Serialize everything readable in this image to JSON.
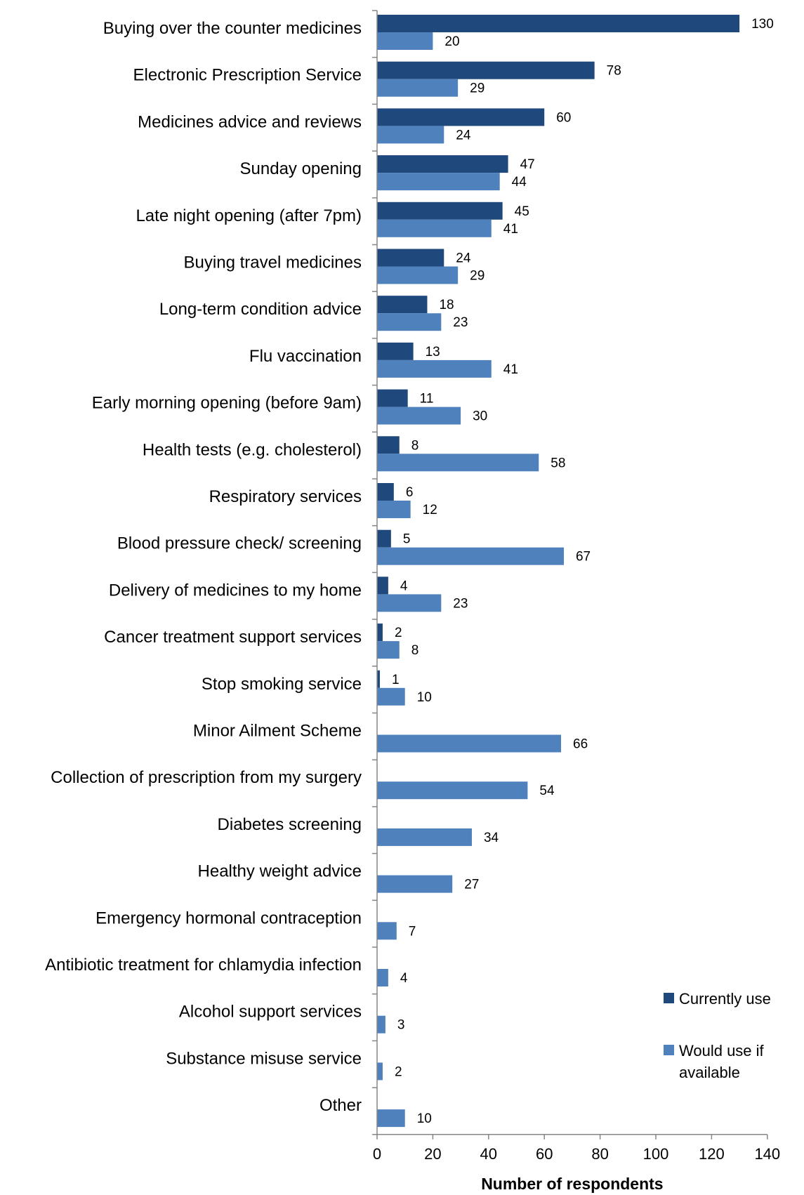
{
  "chart_data": {
    "type": "bar",
    "orientation": "horizontal",
    "xlabel": "Number of respondents",
    "ylabel": "",
    "xlim": [
      0,
      140
    ],
    "xticks": [
      0,
      20,
      40,
      60,
      80,
      100,
      120,
      140
    ],
    "grid": false,
    "legend_position": "bottom-right",
    "categories": [
      "Buying over the counter medicines",
      "Electronic Prescription Service",
      "Medicines advice and reviews",
      "Sunday opening",
      "Late night opening (after 7pm)",
      "Buying travel medicines",
      "Long-term condition advice",
      "Flu vaccination",
      "Early morning opening (before 9am)",
      "Health tests (e.g. cholesterol)",
      "Respiratory services",
      "Blood pressure check/ screening",
      "Delivery of medicines to my home",
      "Cancer treatment support services",
      "Stop smoking service",
      "Minor Ailment Scheme",
      "Collection of prescription from my surgery",
      "Diabetes screening",
      "Healthy weight advice",
      "Emergency hormonal contraception",
      "Antibiotic treatment for chlamydia infection",
      "Alcohol support services",
      "Substance misuse service",
      "Other"
    ],
    "series": [
      {
        "name": "Currently use",
        "color": "#1f497d",
        "values": [
          130,
          78,
          60,
          47,
          45,
          24,
          18,
          13,
          11,
          8,
          6,
          5,
          4,
          2,
          1,
          null,
          null,
          null,
          null,
          null,
          null,
          null,
          null,
          null
        ]
      },
      {
        "name": "Would use if available",
        "color": "#4f81bd",
        "values": [
          20,
          29,
          24,
          44,
          41,
          29,
          23,
          41,
          30,
          58,
          12,
          67,
          23,
          8,
          10,
          66,
          54,
          34,
          27,
          7,
          4,
          3,
          2,
          10
        ]
      }
    ],
    "legend": {
      "entries": [
        {
          "lines": [
            "Currently use"
          ]
        },
        {
          "lines": [
            "Would use if",
            "available"
          ]
        }
      ]
    }
  }
}
